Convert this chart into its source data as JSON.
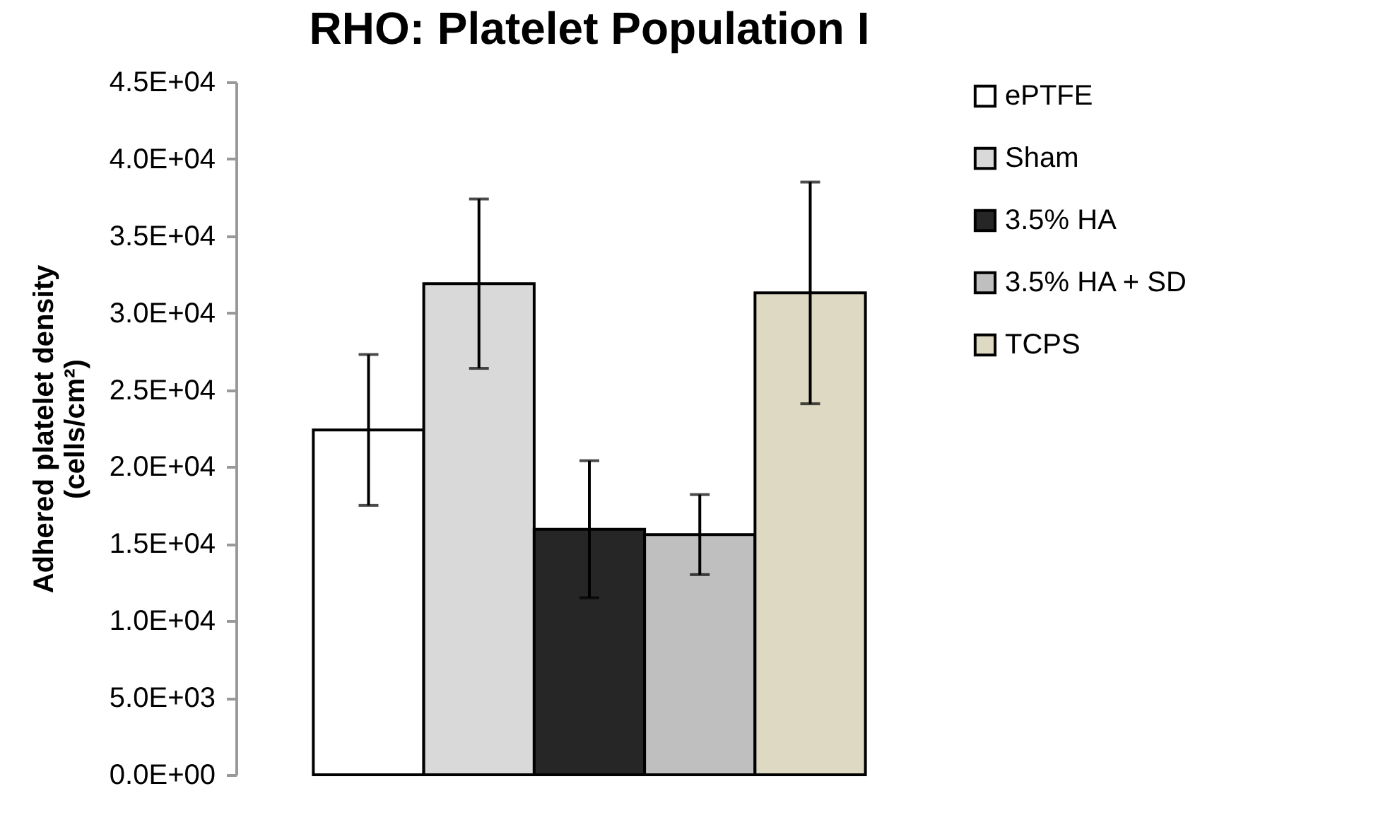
{
  "chart_data": {
    "type": "bar",
    "title": "RHO: Platelet Population I",
    "ylabel": "Adhered platelet density\n(cells/cm²)",
    "categories": [
      null
    ],
    "series": [
      {
        "name": "ePTFE",
        "color": "#ffffff",
        "values": [
          22400
        ],
        "errors": [
          4900
        ]
      },
      {
        "name": "Sham",
        "color": "#d9d9d9",
        "values": [
          31900
        ],
        "errors": [
          5500
        ]
      },
      {
        "name": "3.5% HA",
        "color": "#262626",
        "values": [
          15950
        ],
        "errors": [
          4450
        ]
      },
      {
        "name": "3.5% HA + SD",
        "color": "#bfbfbf",
        "values": [
          15600
        ],
        "errors": [
          2600
        ]
      },
      {
        "name": "TCPS",
        "color": "#ddd9c3",
        "values": [
          31300
        ],
        "errors": [
          7200
        ]
      }
    ],
    "ylim": [
      0,
      45000
    ],
    "yticks": [
      {
        "value": 0,
        "label": "0.0E+00"
      },
      {
        "value": 5000,
        "label": "5.0E+03"
      },
      {
        "value": 10000,
        "label": "1.0E+04"
      },
      {
        "value": 15000,
        "label": "1.5E+04"
      },
      {
        "value": 20000,
        "label": "2.0E+04"
      },
      {
        "value": 25000,
        "label": "2.5E+04"
      },
      {
        "value": 30000,
        "label": "3.0E+04"
      },
      {
        "value": 35000,
        "label": "3.5E+04"
      },
      {
        "value": 40000,
        "label": "4.0E+04"
      },
      {
        "value": 45000,
        "label": "4.5E+04"
      }
    ],
    "grid": false,
    "legend": "right"
  }
}
